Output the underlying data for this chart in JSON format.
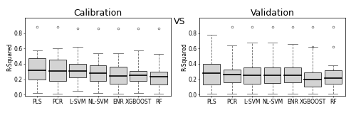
{
  "title_left": "Calibration",
  "title_right": "Validation",
  "vs_text": "VS",
  "ylabel": "R-Squared",
  "categories": [
    "PLS",
    "PCR",
    "L-SVM",
    "NL-SVM",
    "ENR",
    "XGBOOST",
    "RF"
  ],
  "ylim": [
    -0.02,
    1.0
  ],
  "yticks": [
    0.0,
    0.2,
    0.4,
    0.6,
    0.8
  ],
  "calib_boxes": [
    {
      "med": 0.32,
      "q1": 0.2,
      "q3": 0.47,
      "whislo": 0.02,
      "whishi": 0.58,
      "fliers": [
        0.88
      ]
    },
    {
      "med": 0.31,
      "q1": 0.18,
      "q3": 0.46,
      "whislo": 0.01,
      "whishi": 0.6,
      "fliers": [
        0.88
      ]
    },
    {
      "med": 0.31,
      "q1": 0.22,
      "q3": 0.4,
      "whislo": 0.05,
      "whishi": 0.62,
      "fliers": [
        0.86
      ]
    },
    {
      "med": 0.28,
      "q1": 0.18,
      "q3": 0.38,
      "whislo": 0.02,
      "whishi": 0.54,
      "fliers": [
        0.86
      ]
    },
    {
      "med": 0.24,
      "q1": 0.14,
      "q3": 0.36,
      "whislo": 0.01,
      "whishi": 0.54,
      "fliers": [
        0.86
      ]
    },
    {
      "med": 0.25,
      "q1": 0.18,
      "q3": 0.31,
      "whislo": 0.02,
      "whishi": 0.58,
      "fliers": [
        0.86
      ]
    },
    {
      "med": 0.23,
      "q1": 0.13,
      "q3": 0.3,
      "whislo": 0.01,
      "whishi": 0.53,
      "fliers": [
        0.86
      ]
    }
  ],
  "valid_boxes": [
    {
      "med": 0.28,
      "q1": 0.13,
      "q3": 0.4,
      "whislo": 0.01,
      "whishi": 0.78,
      "fliers": []
    },
    {
      "med": 0.26,
      "q1": 0.16,
      "q3": 0.33,
      "whislo": 0.01,
      "whishi": 0.64,
      "fliers": [
        0.88
      ]
    },
    {
      "med": 0.25,
      "q1": 0.14,
      "q3": 0.35,
      "whislo": 0.01,
      "whishi": 0.68,
      "fliers": [
        0.88
      ]
    },
    {
      "med": 0.25,
      "q1": 0.15,
      "q3": 0.35,
      "whislo": 0.01,
      "whishi": 0.68,
      "fliers": [
        0.88
      ]
    },
    {
      "med": 0.25,
      "q1": 0.16,
      "q3": 0.35,
      "whislo": 0.01,
      "whishi": 0.66,
      "fliers": [
        0.88
      ]
    },
    {
      "med": 0.2,
      "q1": 0.1,
      "q3": 0.29,
      "whislo": 0.01,
      "whishi": 0.62,
      "fliers": [
        0.62,
        0.88
      ]
    },
    {
      "med": 0.21,
      "q1": 0.14,
      "q3": 0.32,
      "whislo": 0.01,
      "whishi": 0.38,
      "fliers": [
        0.62,
        0.88
      ]
    }
  ],
  "box_facecolor": "#d3d3d3",
  "box_edgecolor": "#000000",
  "median_color": "#000000",
  "whisker_color": "#666666",
  "flier_color": "#666666",
  "background_color": "#ffffff",
  "title_fontsize": 9,
  "label_fontsize": 5.5,
  "tick_fontsize": 5.5,
  "box_width": 0.42
}
